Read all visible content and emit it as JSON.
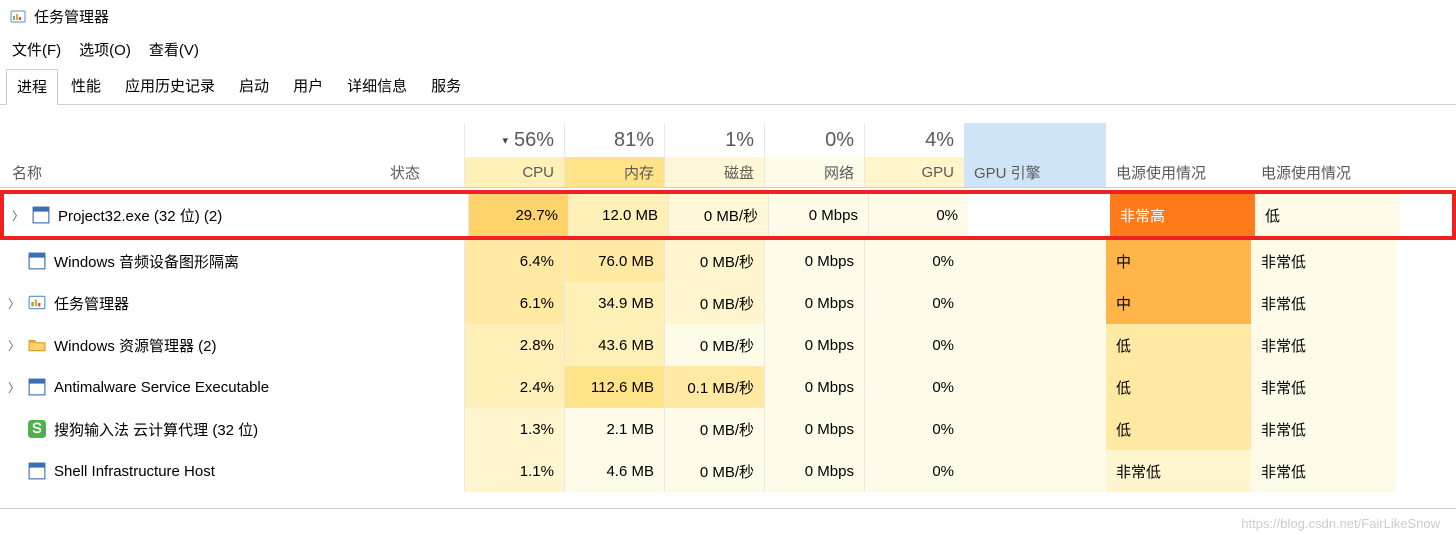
{
  "window": {
    "title": "任务管理器"
  },
  "menu": {
    "file": "文件(F)",
    "options": "选项(O)",
    "view": "查看(V)"
  },
  "tabs": [
    "进程",
    "性能",
    "应用历史记录",
    "启动",
    "用户",
    "详细信息",
    "服务"
  ],
  "active_tab": 0,
  "columns": {
    "name": "名称",
    "status": "状态",
    "cpu": "CPU",
    "cpu_agg": "56%",
    "mem": "内存",
    "mem_agg": "81%",
    "disk": "磁盘",
    "disk_agg": "1%",
    "net": "网络",
    "net_agg": "0%",
    "gpu": "GPU",
    "gpu_agg": "4%",
    "gpu_engine": "GPU 引擎",
    "power": "电源使用情况",
    "power_trend": "电源使用情况"
  },
  "heat": {
    "cpu_header": "#fff0b8",
    "mem_header": "#ffe389",
    "disk_header": "#fff7d6",
    "net_header": "#fffbe9",
    "gpu_header": "#fff5ca",
    "engine_header": "#cfe5f7",
    "c1": "#fffbe9",
    "c2": "#fff5cf",
    "c3": "#ffe9a3",
    "c4": "#ffd36b",
    "c5": "#ffb547",
    "orange_high": "#ff7a1a",
    "orange_mid": "#ffb547"
  },
  "rows": [
    {
      "chev": true,
      "icon": "app",
      "name": "Project32.exe (32 位) (2)",
      "cpu": "29.7%",
      "cpu_bg": "#ffd36b",
      "mem": "12.0 MB",
      "mem_bg": "#fff0b8",
      "disk": "0 MB/秒",
      "disk_bg": "#fff7d6",
      "net": "0 Mbps",
      "net_bg": "#fffbe9",
      "gpu": "0%",
      "gpu_bg": "#fffbe9",
      "engine": "",
      "engine_bg": "#ffffff",
      "power": "非常高",
      "power_bg": "#ff7a1a",
      "trend": "低",
      "trend_bg": "#fffbe9",
      "highlight": true
    },
    {
      "chev": false,
      "icon": "app",
      "name": "Windows 音频设备图形隔离",
      "cpu": "6.4%",
      "cpu_bg": "#ffe9a3",
      "mem": "76.0 MB",
      "mem_bg": "#ffe9a3",
      "disk": "0 MB/秒",
      "disk_bg": "#fff5cf",
      "net": "0 Mbps",
      "net_bg": "#fffbe9",
      "gpu": "0%",
      "gpu_bg": "#fffbe9",
      "engine": "",
      "engine_bg": "#fffbe9",
      "power": "中",
      "power_bg": "#ffb547",
      "trend": "非常低",
      "trend_bg": "#fffbe9"
    },
    {
      "chev": true,
      "icon": "tm",
      "name": "任务管理器",
      "cpu": "6.1%",
      "cpu_bg": "#ffe9a3",
      "mem": "34.9 MB",
      "mem_bg": "#fff0b8",
      "disk": "0 MB/秒",
      "disk_bg": "#fff5cf",
      "net": "0 Mbps",
      "net_bg": "#fffbe9",
      "gpu": "0%",
      "gpu_bg": "#fffbe9",
      "engine": "",
      "engine_bg": "#fffbe9",
      "power": "中",
      "power_bg": "#ffb547",
      "trend": "非常低",
      "trend_bg": "#fffbe9"
    },
    {
      "chev": true,
      "icon": "folder",
      "name": "Windows 资源管理器 (2)",
      "cpu": "2.8%",
      "cpu_bg": "#fff0b8",
      "mem": "43.6 MB",
      "mem_bg": "#fff0b8",
      "disk": "0 MB/秒",
      "disk_bg": "#fffbe9",
      "net": "0 Mbps",
      "net_bg": "#fffbe9",
      "gpu": "0%",
      "gpu_bg": "#fffbe9",
      "engine": "",
      "engine_bg": "#fffbe9",
      "power": "低",
      "power_bg": "#ffe9a3",
      "trend": "非常低",
      "trend_bg": "#fffbe9"
    },
    {
      "chev": true,
      "icon": "app",
      "name": "Antimalware Service Executable",
      "cpu": "2.4%",
      "cpu_bg": "#fff0b8",
      "mem": "112.6 MB",
      "mem_bg": "#ffe389",
      "disk": "0.1 MB/秒",
      "disk_bg": "#ffe9a3",
      "net": "0 Mbps",
      "net_bg": "#fffbe9",
      "gpu": "0%",
      "gpu_bg": "#fffbe9",
      "engine": "",
      "engine_bg": "#fffbe9",
      "power": "低",
      "power_bg": "#ffe9a3",
      "trend": "非常低",
      "trend_bg": "#fffbe9"
    },
    {
      "chev": false,
      "icon": "sogou",
      "name": "搜狗输入法 云计算代理 (32 位)",
      "cpu": "1.3%",
      "cpu_bg": "#fff5cf",
      "mem": "2.1 MB",
      "mem_bg": "#fffbe9",
      "disk": "0 MB/秒",
      "disk_bg": "#fffbe9",
      "net": "0 Mbps",
      "net_bg": "#fffbe9",
      "gpu": "0%",
      "gpu_bg": "#fffbe9",
      "engine": "",
      "engine_bg": "#fffbe9",
      "power": "低",
      "power_bg": "#ffe9a3",
      "trend": "非常低",
      "trend_bg": "#fffbe9"
    },
    {
      "chev": false,
      "icon": "app",
      "name": "Shell Infrastructure Host",
      "cpu": "1.1%",
      "cpu_bg": "#fff5cf",
      "mem": "4.6 MB",
      "mem_bg": "#fffbe9",
      "disk": "0 MB/秒",
      "disk_bg": "#fffbe9",
      "net": "0 Mbps",
      "net_bg": "#fffbe9",
      "gpu": "0%",
      "gpu_bg": "#fffbe9",
      "engine": "",
      "engine_bg": "#fffbe9",
      "power": "非常低",
      "power_bg": "#fff5cf",
      "trend": "非常低",
      "trend_bg": "#fffbe9"
    }
  ],
  "watermark": "https://blog.csdn.net/FairLikeSnow"
}
